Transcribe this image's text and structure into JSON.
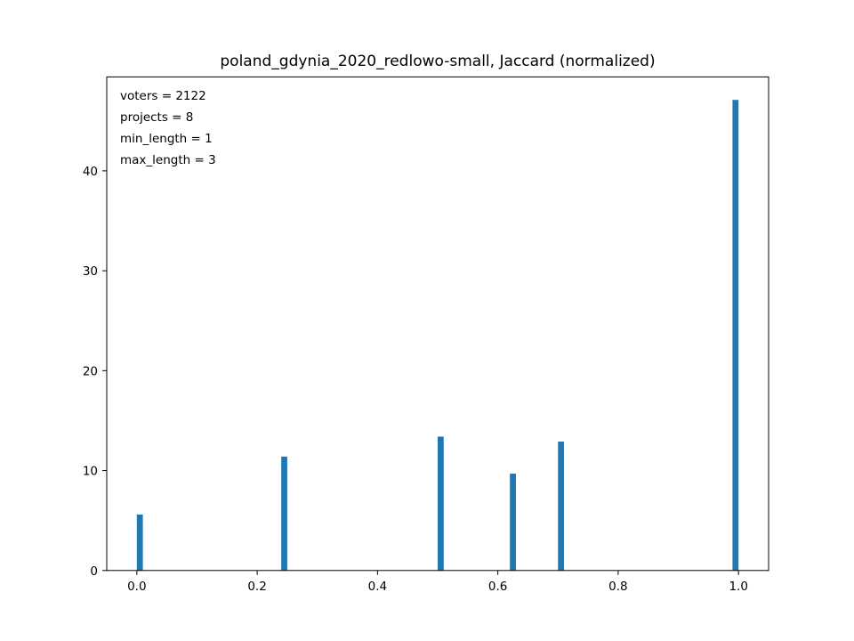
{
  "chart_data": {
    "type": "bar",
    "title": "poland_gdynia_2020_redlowo-small, Jaccard (normalized)",
    "xlabel": "",
    "ylabel": "",
    "xlim": [
      -0.05,
      1.05
    ],
    "ylim": [
      0,
      49.4
    ],
    "grid": false,
    "bar_color": "#1f77b4",
    "bar_width": 0.01,
    "x_ticks": [
      0.0,
      0.2,
      0.4,
      0.6,
      0.8,
      1.0
    ],
    "x_tick_labels": [
      "0.0",
      "0.2",
      "0.4",
      "0.6",
      "0.8",
      "1.0"
    ],
    "y_ticks": [
      0,
      10,
      20,
      30,
      40
    ],
    "y_tick_labels": [
      "0",
      "10",
      "20",
      "30",
      "40"
    ],
    "bars": [
      {
        "x": 0.005,
        "value": 5.6
      },
      {
        "x": 0.245,
        "value": 11.4
      },
      {
        "x": 0.505,
        "value": 13.4
      },
      {
        "x": 0.625,
        "value": 9.7
      },
      {
        "x": 0.705,
        "value": 12.9
      },
      {
        "x": 0.995,
        "value": 47.1
      }
    ],
    "annotations": [
      "voters = 2122",
      "projects = 8",
      "min_length = 1",
      "max_length = 3"
    ]
  }
}
